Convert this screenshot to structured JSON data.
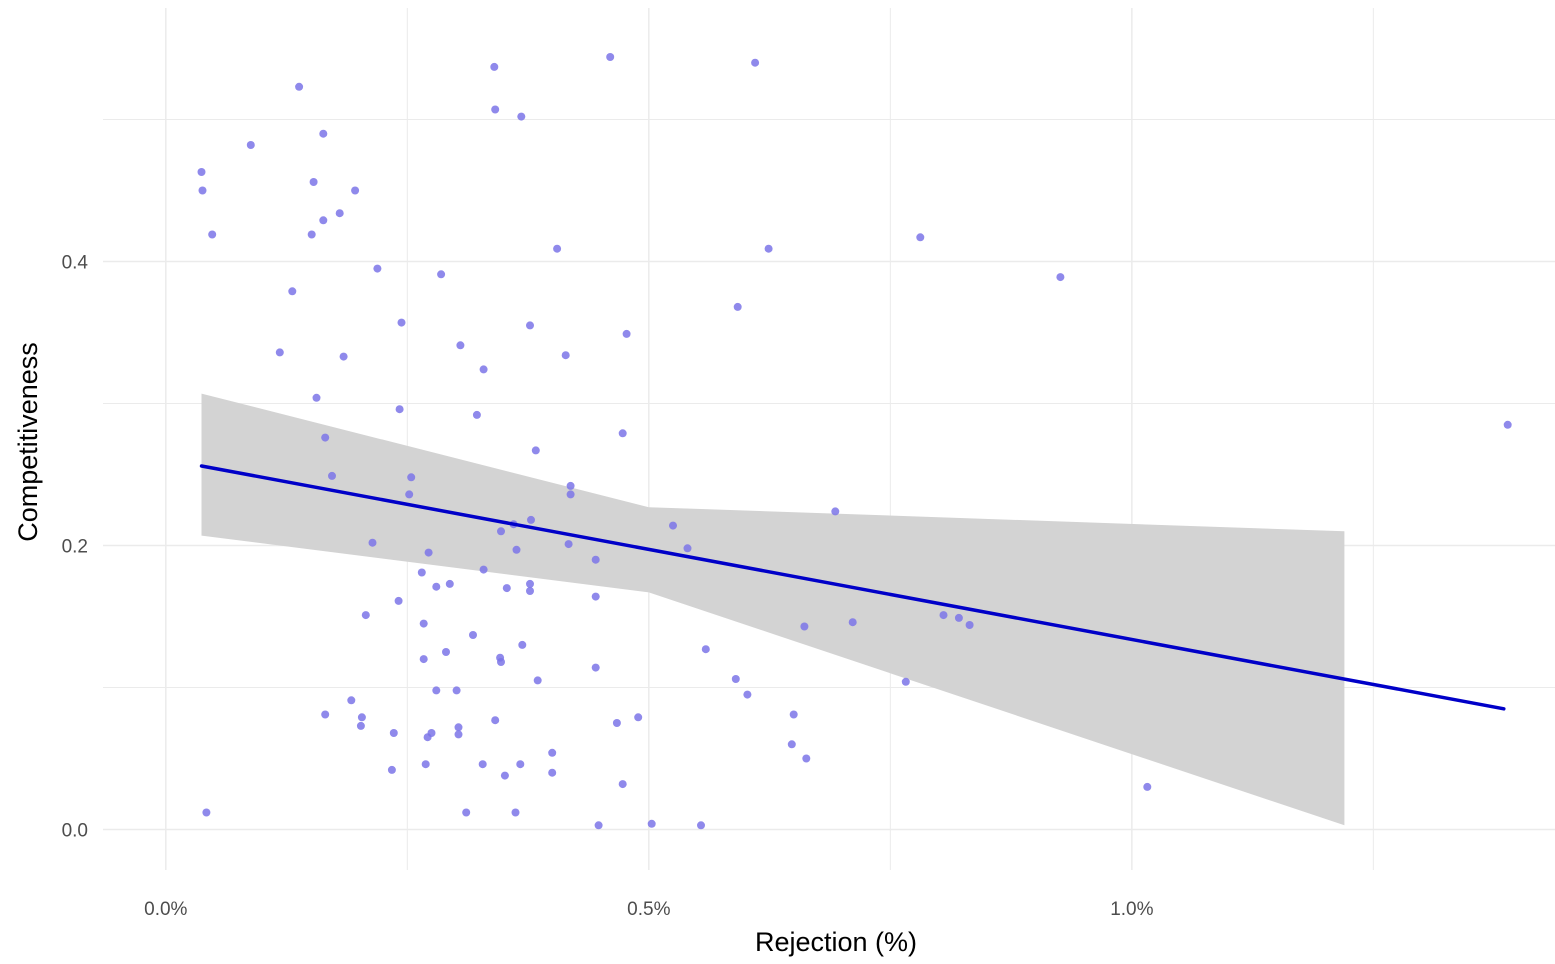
{
  "chart_data": {
    "type": "scatter",
    "title": "",
    "xlabel": "Rejection (%)",
    "ylabel": "Competitiveness",
    "xlim": [
      -0.00065,
      0.01438
    ],
    "ylim": [
      -0.0285,
      0.5785
    ],
    "x_ticks": [
      0.0,
      0.005,
      0.01
    ],
    "x_tick_labels": [
      "0.0%",
      "0.5%",
      "1.0%"
    ],
    "y_ticks": [
      0.0,
      0.2,
      0.4
    ],
    "y_tick_labels": [
      "0.0",
      "0.2",
      "0.4"
    ],
    "grid": true,
    "legend": "none",
    "colors": {
      "points": "#7b74e8",
      "line": "#0000c8",
      "ribbon": "#d3d3d3",
      "grid": "#ebebeb"
    },
    "points": [
      {
        "x": 0.00037,
        "y": 0.463
      },
      {
        "x": 0.00038,
        "y": 0.45
      },
      {
        "x": 0.00048,
        "y": 0.419
      },
      {
        "x": 0.00042,
        "y": 0.012
      },
      {
        "x": 0.00088,
        "y": 0.482
      },
      {
        "x": 0.00118,
        "y": 0.336
      },
      {
        "x": 0.00131,
        "y": 0.379
      },
      {
        "x": 0.00138,
        "y": 0.523
      },
      {
        "x": 0.00151,
        "y": 0.419
      },
      {
        "x": 0.00153,
        "y": 0.456
      },
      {
        "x": 0.00156,
        "y": 0.304
      },
      {
        "x": 0.00163,
        "y": 0.429
      },
      {
        "x": 0.00163,
        "y": 0.49
      },
      {
        "x": 0.00165,
        "y": 0.276
      },
      {
        "x": 0.00172,
        "y": 0.249
      },
      {
        "x": 0.0018,
        "y": 0.434
      },
      {
        "x": 0.00184,
        "y": 0.333
      },
      {
        "x": 0.00196,
        "y": 0.45
      },
      {
        "x": 0.00207,
        "y": 0.151
      },
      {
        "x": 0.00214,
        "y": 0.202
      },
      {
        "x": 0.00219,
        "y": 0.395
      },
      {
        "x": 0.00165,
        "y": 0.081
      },
      {
        "x": 0.00192,
        "y": 0.091
      },
      {
        "x": 0.00203,
        "y": 0.079
      },
      {
        "x": 0.00202,
        "y": 0.073
      },
      {
        "x": 0.00236,
        "y": 0.068
      },
      {
        "x": 0.00234,
        "y": 0.042
      },
      {
        "x": 0.00241,
        "y": 0.161
      },
      {
        "x": 0.00244,
        "y": 0.357
      },
      {
        "x": 0.00242,
        "y": 0.296
      },
      {
        "x": 0.00252,
        "y": 0.236
      },
      {
        "x": 0.00254,
        "y": 0.248
      },
      {
        "x": 0.00265,
        "y": 0.181
      },
      {
        "x": 0.00267,
        "y": 0.145
      },
      {
        "x": 0.00267,
        "y": 0.12
      },
      {
        "x": 0.00269,
        "y": 0.046
      },
      {
        "x": 0.00272,
        "y": 0.195
      },
      {
        "x": 0.00271,
        "y": 0.065
      },
      {
        "x": 0.00275,
        "y": 0.068
      },
      {
        "x": 0.0028,
        "y": 0.171
      },
      {
        "x": 0.0028,
        "y": 0.098
      },
      {
        "x": 0.00285,
        "y": 0.391
      },
      {
        "x": 0.0029,
        "y": 0.125
      },
      {
        "x": 0.00294,
        "y": 0.173
      },
      {
        "x": 0.00301,
        "y": 0.098
      },
      {
        "x": 0.00303,
        "y": 0.072
      },
      {
        "x": 0.00303,
        "y": 0.067
      },
      {
        "x": 0.00305,
        "y": 0.341
      },
      {
        "x": 0.00311,
        "y": 0.012
      },
      {
        "x": 0.00318,
        "y": 0.137
      },
      {
        "x": 0.00322,
        "y": 0.292
      },
      {
        "x": 0.00329,
        "y": 0.324
      },
      {
        "x": 0.00329,
        "y": 0.183
      },
      {
        "x": 0.00328,
        "y": 0.046
      },
      {
        "x": 0.0034,
        "y": 0.537
      },
      {
        "x": 0.00341,
        "y": 0.507
      },
      {
        "x": 0.00341,
        "y": 0.077
      },
      {
        "x": 0.00346,
        "y": 0.121
      },
      {
        "x": 0.00347,
        "y": 0.118
      },
      {
        "x": 0.00347,
        "y": 0.21
      },
      {
        "x": 0.00351,
        "y": 0.038
      },
      {
        "x": 0.00353,
        "y": 0.17
      },
      {
        "x": 0.0036,
        "y": 0.215
      },
      {
        "x": 0.00362,
        "y": 0.012
      },
      {
        "x": 0.00363,
        "y": 0.197
      },
      {
        "x": 0.00367,
        "y": 0.046
      },
      {
        "x": 0.00368,
        "y": 0.502
      },
      {
        "x": 0.00369,
        "y": 0.13
      },
      {
        "x": 0.00377,
        "y": 0.355
      },
      {
        "x": 0.00378,
        "y": 0.218
      },
      {
        "x": 0.00377,
        "y": 0.173
      },
      {
        "x": 0.00377,
        "y": 0.168
      },
      {
        "x": 0.00383,
        "y": 0.267
      },
      {
        "x": 0.00385,
        "y": 0.105
      },
      {
        "x": 0.004,
        "y": 0.054
      },
      {
        "x": 0.004,
        "y": 0.04
      },
      {
        "x": 0.00405,
        "y": 0.409
      },
      {
        "x": 0.00414,
        "y": 0.334
      },
      {
        "x": 0.00417,
        "y": 0.201
      },
      {
        "x": 0.00419,
        "y": 0.242
      },
      {
        "x": 0.00419,
        "y": 0.236
      },
      {
        "x": 0.00445,
        "y": 0.19
      },
      {
        "x": 0.00445,
        "y": 0.164
      },
      {
        "x": 0.00445,
        "y": 0.114
      },
      {
        "x": 0.00448,
        "y": 0.003
      },
      {
        "x": 0.0046,
        "y": 0.544
      },
      {
        "x": 0.00467,
        "y": 0.075
      },
      {
        "x": 0.00473,
        "y": 0.279
      },
      {
        "x": 0.00473,
        "y": 0.032
      },
      {
        "x": 0.00477,
        "y": 0.349
      },
      {
        "x": 0.00489,
        "y": 0.079
      },
      {
        "x": 0.00503,
        "y": 0.004
      },
      {
        "x": 0.00525,
        "y": 0.214
      },
      {
        "x": 0.0054,
        "y": 0.198
      },
      {
        "x": 0.00554,
        "y": 0.003
      },
      {
        "x": 0.00559,
        "y": 0.127
      },
      {
        "x": 0.0059,
        "y": 0.106
      },
      {
        "x": 0.00592,
        "y": 0.368
      },
      {
        "x": 0.00602,
        "y": 0.095
      },
      {
        "x": 0.0061,
        "y": 0.54
      },
      {
        "x": 0.00624,
        "y": 0.409
      },
      {
        "x": 0.00648,
        "y": 0.06
      },
      {
        "x": 0.0065,
        "y": 0.081
      },
      {
        "x": 0.00661,
        "y": 0.143
      },
      {
        "x": 0.00663,
        "y": 0.05
      },
      {
        "x": 0.00693,
        "y": 0.224
      },
      {
        "x": 0.00711,
        "y": 0.146
      },
      {
        "x": 0.00766,
        "y": 0.104
      },
      {
        "x": 0.00781,
        "y": 0.417
      },
      {
        "x": 0.00805,
        "y": 0.151
      },
      {
        "x": 0.00821,
        "y": 0.149
      },
      {
        "x": 0.00832,
        "y": 0.144
      },
      {
        "x": 0.00926,
        "y": 0.389
      },
      {
        "x": 0.01016,
        "y": 0.03
      },
      {
        "x": 0.01389,
        "y": 0.285
      }
    ],
    "regression_line": {
      "x": [
        0.00037,
        0.01385
      ],
      "y": [
        0.256,
        0.085
      ]
    },
    "confidence_band": {
      "x": [
        0.00037,
        0.005,
        0.0122
      ],
      "lower": [
        0.207,
        0.167,
        0.003
      ],
      "upper": [
        0.307,
        0.227,
        0.21
      ]
    }
  }
}
